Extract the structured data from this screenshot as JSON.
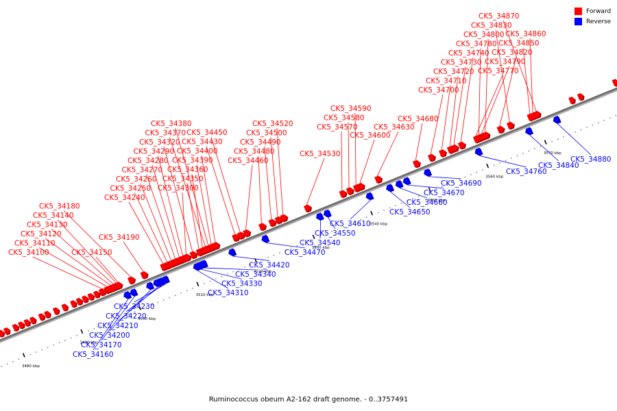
{
  "caption": "Ruminococcus obeum A2-162 draft genome. - 0..3757491",
  "legend": [
    {
      "label": "Forward",
      "color": "#ff0000"
    },
    {
      "label": "Reverse",
      "color": "#0000ff"
    }
  ],
  "colors": {
    "forward": "#ff0000",
    "reverse": "#0000ff",
    "backbone": "#808080",
    "tick": "#000000"
  },
  "axis": {
    "unit": "kbp",
    "start": 3475,
    "end": 3585
  },
  "ticks": [
    {
      "kbp": 3480,
      "label": "3480 kbp"
    },
    {
      "kbp": 3490,
      "label": "3490 kbp"
    },
    {
      "kbp": 3500,
      "label": "3500 kbp"
    },
    {
      "kbp": 3510,
      "label": "3510 kbp"
    },
    {
      "kbp": 3520,
      "label": "3520 kbp"
    },
    {
      "kbp": 3530,
      "label": "3530 kbp"
    },
    {
      "kbp": 3540,
      "label": "3540 kbp"
    },
    {
      "kbp": 3550,
      "label": "3550 kbp"
    },
    {
      "kbp": 3560,
      "label": "3560 kbp"
    },
    {
      "kbp": 3570,
      "label": "3570 kbp"
    }
  ],
  "labeled_genes": [
    {
      "id": "CK5_34100",
      "strand": "+",
      "kbp": 3495.5
    },
    {
      "id": "CK5_34110",
      "strand": "+",
      "kbp": 3496.4
    },
    {
      "id": "CK5_34120",
      "strand": "+",
      "kbp": 3497.0
    },
    {
      "id": "CK5_34130",
      "strand": "+",
      "kbp": 3497.5
    },
    {
      "id": "CK5_34140",
      "strand": "+",
      "kbp": 3498.0
    },
    {
      "id": "CK5_34150",
      "strand": "+",
      "kbp": 3498.3
    },
    {
      "id": "CK5_34160",
      "strand": "-",
      "kbp": 3498.8
    },
    {
      "id": "CK5_34170",
      "strand": "-",
      "kbp": 3499.9
    },
    {
      "id": "CK5_34180",
      "strand": "+",
      "kbp": 3500.5
    },
    {
      "id": "CK5_34190",
      "strand": "+",
      "kbp": 3502.7
    },
    {
      "id": "CK5_34200",
      "strand": "-",
      "kbp": 3502.7
    },
    {
      "id": "CK5_34210",
      "strand": "-",
      "kbp": 3503.9
    },
    {
      "id": "CK5_34220",
      "strand": "-",
      "kbp": 3504.6
    },
    {
      "id": "CK5_34230",
      "strand": "-",
      "kbp": 3505.4
    },
    {
      "id": "CK5_34240",
      "strand": "+",
      "kbp": 3506.1
    },
    {
      "id": "CK5_34250",
      "strand": "+",
      "kbp": 3506.8
    },
    {
      "id": "CK5_34260",
      "strand": "+",
      "kbp": 3507.5
    },
    {
      "id": "CK5_34270",
      "strand": "+",
      "kbp": 3508.2
    },
    {
      "id": "CK5_34280",
      "strand": "+",
      "kbp": 3508.9
    },
    {
      "id": "CK5_34290",
      "strand": "+",
      "kbp": 3509.5
    },
    {
      "id": "CK5_34300",
      "strand": "+",
      "kbp": 3510.1
    },
    {
      "id": "CK5_34310",
      "strand": "-",
      "kbp": 3510.8
    },
    {
      "id": "CK5_34320",
      "strand": "+",
      "kbp": 3511.2
    },
    {
      "id": "CK5_34330",
      "strand": "-",
      "kbp": 3511.4
    },
    {
      "id": "CK5_34340",
      "strand": "-",
      "kbp": 3512.0
    },
    {
      "id": "CK5_34350",
      "strand": "+",
      "kbp": 3512.3
    },
    {
      "id": "CK5_34360",
      "strand": "+",
      "kbp": 3512.9
    },
    {
      "id": "CK5_34370",
      "strand": "+",
      "kbp": 3513.4
    },
    {
      "id": "CK5_34380",
      "strand": "+",
      "kbp": 3513.9
    },
    {
      "id": "CK5_34390",
      "strand": "+",
      "kbp": 3514.4
    },
    {
      "id": "CK5_34400",
      "strand": "+",
      "kbp": 3515.1
    },
    {
      "id": "CK5_34420",
      "strand": "-",
      "kbp": 3516.9
    },
    {
      "id": "CK5_34430",
      "strand": "+",
      "kbp": 3518.5
    },
    {
      "id": "CK5_34450",
      "strand": "+",
      "kbp": 3519.4
    },
    {
      "id": "CK5_34460",
      "strand": "+",
      "kbp": 3520.4
    },
    {
      "id": "CK5_34470",
      "strand": "-",
      "kbp": 3522.6
    },
    {
      "id": "CK5_34480",
      "strand": "+",
      "kbp": 3523.1
    },
    {
      "id": "CK5_34490",
      "strand": "+",
      "kbp": 3524.8
    },
    {
      "id": "CK5_34500",
      "strand": "+",
      "kbp": 3525.9
    },
    {
      "id": "CK5_34520",
      "strand": "+",
      "kbp": 3526.8
    },
    {
      "id": "CK5_34530",
      "strand": "+",
      "kbp": 3530.9
    },
    {
      "id": "CK5_34540",
      "strand": "-",
      "kbp": 3532.0
    },
    {
      "id": "CK5_34550",
      "strand": "-",
      "kbp": 3533.3
    },
    {
      "id": "CK5_34570",
      "strand": "+",
      "kbp": 3537.0
    },
    {
      "id": "CK5_34580",
      "strand": "+",
      "kbp": 3538.2
    },
    {
      "id": "CK5_34590",
      "strand": "+",
      "kbp": 3539.4
    },
    {
      "id": "CK5_34600",
      "strand": "+",
      "kbp": 3540.1
    },
    {
      "id": "CK5_34610",
      "strand": "-",
      "kbp": 3540.6
    },
    {
      "id": "CK5_34630",
      "strand": "+",
      "kbp": 3543.1
    },
    {
      "id": "CK5_34650",
      "strand": "-",
      "kbp": 3544.1
    },
    {
      "id": "CK5_34660",
      "strand": "-",
      "kbp": 3545.7
    },
    {
      "id": "CK5_34670",
      "strand": "-",
      "kbp": 3547.0
    },
    {
      "id": "CK5_34680",
      "strand": "+",
      "kbp": 3549.7
    },
    {
      "id": "CK5_34690",
      "strand": "-",
      "kbp": 3550.6
    },
    {
      "id": "CK5_34700",
      "strand": "+",
      "kbp": 3552.3
    },
    {
      "id": "CK5_34710",
      "strand": "+",
      "kbp": 3554.2
    },
    {
      "id": "CK5_34720",
      "strand": "+",
      "kbp": 3555.6
    },
    {
      "id": "CK5_34730",
      "strand": "+",
      "kbp": 3556.3
    },
    {
      "id": "CK5_34740",
      "strand": "+",
      "kbp": 3557.5
    },
    {
      "id": "CK5_34760",
      "strand": "-",
      "kbp": 3559.4
    },
    {
      "id": "CK5_34770",
      "strand": "+",
      "kbp": 3560.1
    },
    {
      "id": "CK5_34780",
      "strand": "+",
      "kbp": 3560.6
    },
    {
      "id": "CK5_34790",
      "strand": "+",
      "kbp": 3561.1
    },
    {
      "id": "CK5_34800",
      "strand": "+",
      "kbp": 3561.7
    },
    {
      "id": "CK5_34820",
      "strand": "+",
      "kbp": 3564.2
    },
    {
      "id": "CK5_34830",
      "strand": "+",
      "kbp": 3565.9
    },
    {
      "id": "CK5_34840",
      "strand": "-",
      "kbp": 3568.1
    },
    {
      "id": "CK5_34850",
      "strand": "+",
      "kbp": 3569.4
    },
    {
      "id": "CK5_34860",
      "strand": "+",
      "kbp": 3569.9
    },
    {
      "id": "CK5_34870",
      "strand": "+",
      "kbp": 3570.5
    },
    {
      "id": "CK5_34880",
      "strand": "-",
      "kbp": 3572.9
    }
  ]
}
